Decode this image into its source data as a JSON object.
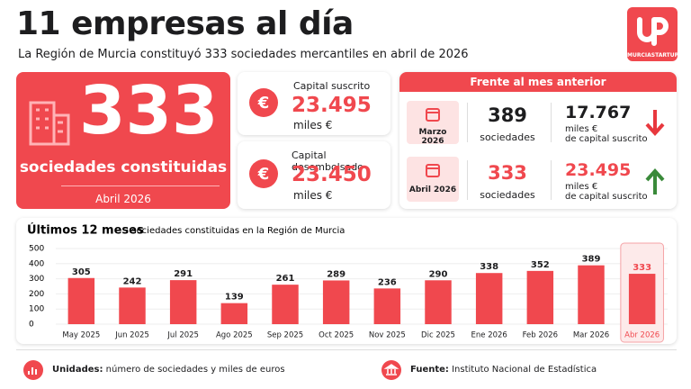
{
  "header": {
    "title": "11 empresas al día",
    "subtitle": "La Región de Murcia constituyó 333 sociedades mercantiles en abril de 2026",
    "logo": "MURCIASTARTUP"
  },
  "hero": {
    "value": "333",
    "label": "sociedades constituidas",
    "period": "Abril 2026"
  },
  "capital": [
    {
      "label": "Capital suscrito",
      "value": "23.495",
      "unit": "miles €"
    },
    {
      "label": "Capital desembolsado",
      "value": "23.450",
      "unit": "miles €"
    }
  ],
  "comparison": {
    "title": "Frente al mes anterior",
    "rows": [
      {
        "period": "Marzo 2026",
        "count": "389",
        "count_label": "sociedades",
        "capital": "17.767",
        "capital_unit": "miles €",
        "capital_label": "de capital suscrito"
      },
      {
        "period": "Abril 2026",
        "count": "333",
        "count_label": "sociedades",
        "capital": "23.495",
        "capital_unit": "miles €",
        "capital_label": "de capital suscrito"
      }
    ]
  },
  "chart_data": {
    "type": "bar",
    "title": "Últimos 12 meses",
    "subtitle": "· sociedades constituidas en la Región de Murcia",
    "categories": [
      "May 2025",
      "Jun 2025",
      "Jul 2025",
      "Ago 2025",
      "Sep 2025",
      "Oct 2025",
      "Nov 2025",
      "Dic 2025",
      "Ene 2026",
      "Feb 2026",
      "Mar 2026",
      "Abr 2026"
    ],
    "values": [
      305,
      242,
      291,
      139,
      261,
      289,
      236,
      290,
      338,
      352,
      389,
      333
    ],
    "color": "#f0484e",
    "ylim": [
      0,
      500
    ],
    "yticks": [
      0,
      100,
      200,
      300,
      400,
      500
    ],
    "grid": true
  },
  "footer": {
    "units_label": "Unidades:",
    "units_text": "número de sociedades y miles de euros",
    "source_label": "Fuente:",
    "source_text": "Instituto Nacional de Estadística"
  }
}
